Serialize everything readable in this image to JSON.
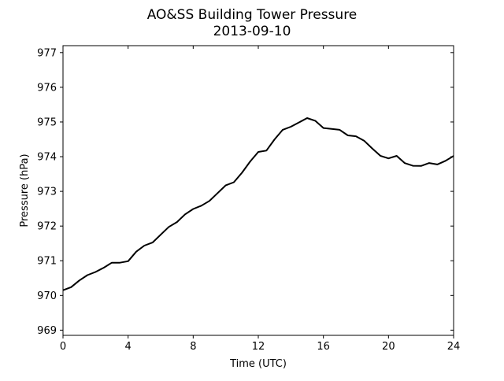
{
  "chart_data": {
    "type": "line",
    "title": "AO&SS Building Tower Pressure",
    "subtitle": "2013-09-10",
    "xlabel": "Time (UTC)",
    "ylabel": "Pressure (hPa)",
    "xlim": [
      0,
      24
    ],
    "ylim": [
      968.85,
      977.2
    ],
    "x_ticks": [
      0,
      4,
      8,
      12,
      16,
      20,
      24
    ],
    "x_tick_labels": [
      "0",
      "4",
      "8",
      "12",
      "16",
      "20",
      "24"
    ],
    "y_ticks": [
      969,
      970,
      971,
      972,
      973,
      974,
      975,
      976,
      977
    ],
    "y_tick_labels": [
      "969",
      "970",
      "971",
      "972",
      "973",
      "974",
      "975",
      "976",
      "977"
    ],
    "grid": false,
    "line_color": "#000000",
    "series": [
      {
        "x": [
          0,
          0.5,
          1,
          1.5,
          2,
          2.5,
          3,
          3.5,
          4,
          4.5,
          5,
          5.5,
          6,
          6.5,
          7,
          7.5,
          8,
          8.5,
          9,
          9.5,
          10,
          10.5,
          11,
          11.5,
          12,
          12.5,
          13,
          13.5,
          14,
          14.5,
          15,
          15.5,
          16,
          16.5,
          17,
          17.5,
          18,
          18.5,
          19,
          19.5,
          20,
          20.5,
          21,
          21.5,
          22,
          22.5,
          23,
          23.5,
          24
        ],
        "y": [
          970.15,
          970.25,
          970.42,
          970.55,
          970.7,
          970.8,
          970.92,
          970.98,
          971.0,
          971.25,
          971.4,
          971.55,
          971.75,
          971.95,
          972.15,
          972.35,
          972.48,
          972.55,
          972.75,
          972.95,
          973.15,
          973.3,
          973.55,
          973.85,
          974.1,
          974.2,
          974.5,
          974.75,
          974.9,
          975.0,
          975.1,
          975.0,
          974.85,
          974.8,
          974.75,
          974.65,
          974.6,
          974.45,
          974.2,
          974.05,
          973.95,
          974.0,
          973.85,
          973.75,
          973.72,
          973.78,
          973.8,
          973.88,
          974.02
        ]
      }
    ]
  }
}
